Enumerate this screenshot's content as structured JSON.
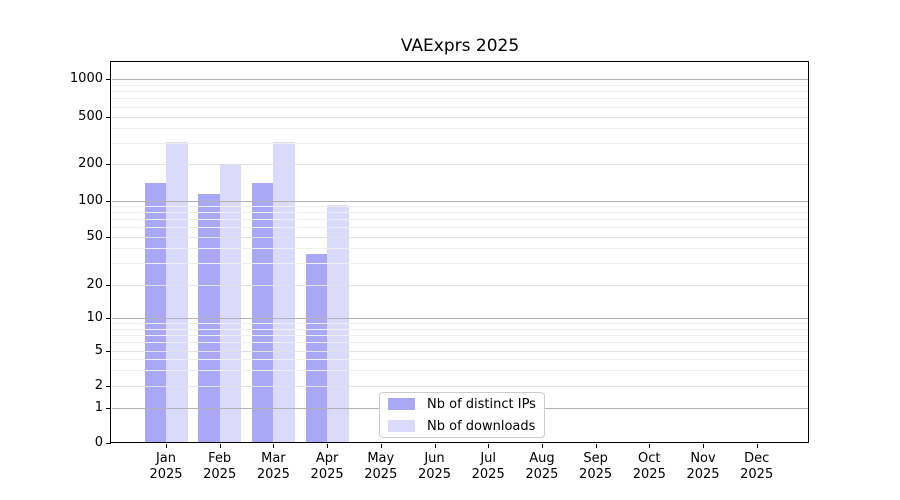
{
  "chart_data": {
    "type": "bar",
    "title": "VAExprs 2025",
    "categories": [
      "Jan 2025",
      "Feb 2025",
      "Mar 2025",
      "Apr 2025",
      "May 2025",
      "Jun 2025",
      "Jul 2025",
      "Aug 2025",
      "Sep 2025",
      "Oct 2025",
      "Nov 2025",
      "Dec 2025"
    ],
    "category_months": [
      "Jan",
      "Feb",
      "Mar",
      "Apr",
      "May",
      "Jun",
      "Jul",
      "Aug",
      "Sep",
      "Oct",
      "Nov",
      "Dec"
    ],
    "category_year": "2025",
    "series": [
      {
        "name": "Nb of distinct IPs",
        "color": "#a8a8f6",
        "values": [
          140,
          113,
          139,
          36,
          0,
          0,
          0,
          0,
          0,
          0,
          0,
          0
        ]
      },
      {
        "name": "Nb of downloads",
        "color": "#dadafa",
        "values": [
          305,
          197,
          305,
          92,
          0,
          0,
          0,
          0,
          0,
          0,
          0,
          0
        ]
      }
    ],
    "yscale": "symlog",
    "yticks": [
      0,
      1,
      2,
      5,
      10,
      20,
      50,
      100,
      200,
      500,
      1000
    ],
    "ylim": [
      0,
      2000
    ],
    "xlabel": "",
    "ylabel": "",
    "grid": "horizontal",
    "legend_position": "lower center"
  },
  "colors": {
    "bar_distinct_ips": "#a8a8f6",
    "bar_downloads": "#dadafa",
    "grid_major": "#b3b3b3",
    "grid_minor": "#efefef",
    "axis": "#000000",
    "legend_border": "#cccccc"
  }
}
